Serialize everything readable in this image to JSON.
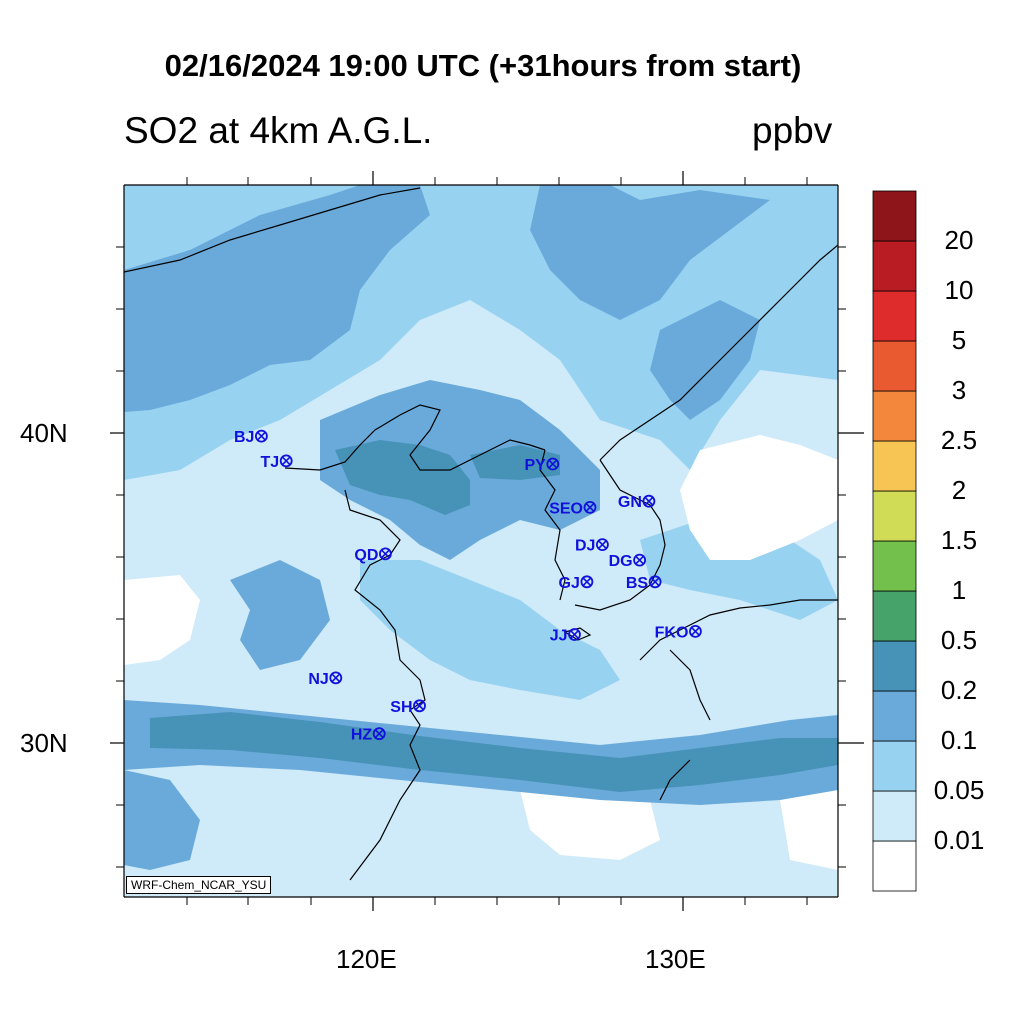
{
  "title": "02/16/2024 19:00 UTC (+31hours from start)",
  "variable_label": "SO2 at 4km A.G.L.",
  "units_label": "ppbv",
  "model_credit": "WRF-Chem_NCAR_YSU",
  "lat_labels": [
    "40N",
    "30N"
  ],
  "lon_labels": [
    "120E",
    "130E"
  ],
  "colorbar": {
    "levels": [
      "0.01",
      "0.05",
      "0.1",
      "0.2",
      "0.5",
      "1",
      "1.5",
      "2",
      "2.5",
      "3",
      "5",
      "10",
      "20"
    ],
    "colors": [
      "#ffffff",
      "#cfeaf8",
      "#97d2f0",
      "#6aaadb",
      "#4793b8",
      "#46a36a",
      "#74c04c",
      "#d1dc56",
      "#f7c553",
      "#f3873b",
      "#ea5a30",
      "#dd2c2b",
      "#b91c22",
      "#8e1519"
    ]
  },
  "stations": [
    {
      "name": "BJ",
      "lon": 116.4,
      "lat": 39.9
    },
    {
      "name": "TJ",
      "lon": 117.2,
      "lat": 39.1
    },
    {
      "name": "PY",
      "lon": 125.8,
      "lat": 39.0
    },
    {
      "name": "SEO",
      "lon": 127.0,
      "lat": 37.6
    },
    {
      "name": "GN",
      "lon": 128.9,
      "lat": 37.8
    },
    {
      "name": "QD",
      "lon": 120.4,
      "lat": 36.1
    },
    {
      "name": "DJ",
      "lon": 127.4,
      "lat": 36.4
    },
    {
      "name": "DG",
      "lon": 128.6,
      "lat": 35.9
    },
    {
      "name": "GJ",
      "lon": 126.9,
      "lat": 35.2
    },
    {
      "name": "BS",
      "lon": 129.1,
      "lat": 35.2
    },
    {
      "name": "JJ",
      "lon": 126.5,
      "lat": 33.5
    },
    {
      "name": "FKO",
      "lon": 130.4,
      "lat": 33.6
    },
    {
      "name": "NJ",
      "lon": 118.8,
      "lat": 32.1
    },
    {
      "name": "SH",
      "lon": 121.5,
      "lat": 31.2
    },
    {
      "name": "HZ",
      "lon": 120.2,
      "lat": 30.3
    }
  ],
  "station_color": "#1111dd"
}
